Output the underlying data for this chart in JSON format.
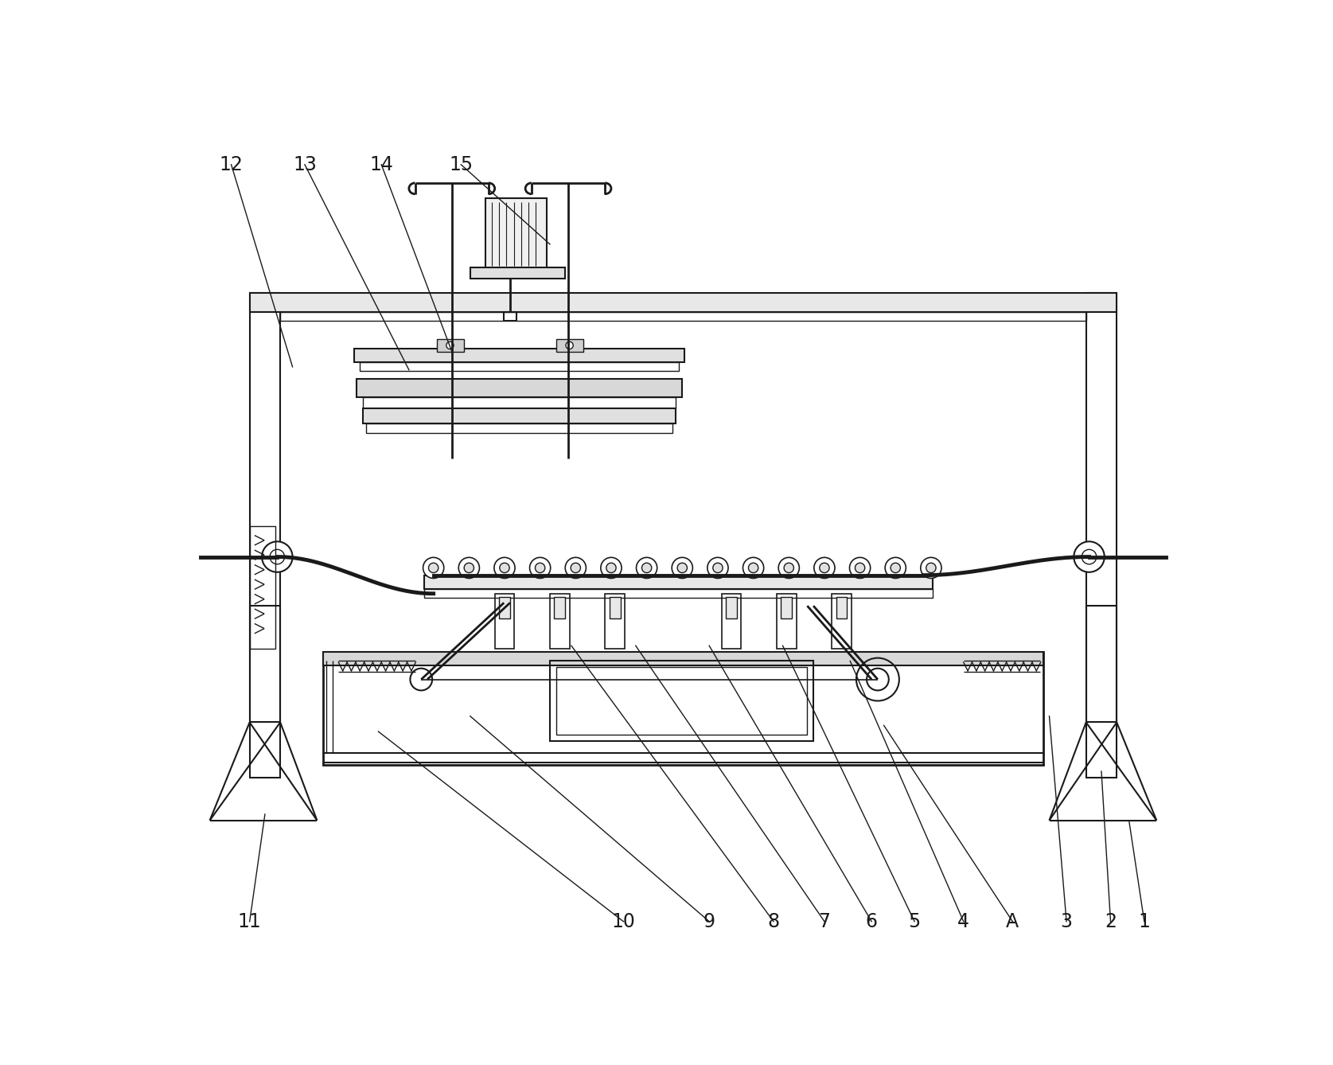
{
  "bg_color": "#ffffff",
  "line_color": "#1a1a1a",
  "annotations": [
    [
      "1",
      1590,
      1295,
      1565,
      1130
    ],
    [
      "2",
      1535,
      1295,
      1520,
      1050
    ],
    [
      "3",
      1463,
      1295,
      1435,
      960
    ],
    [
      "A",
      1375,
      1295,
      1165,
      975
    ],
    [
      "4",
      1295,
      1295,
      1110,
      870
    ],
    [
      "5",
      1215,
      1295,
      1000,
      845
    ],
    [
      "6",
      1145,
      1295,
      880,
      845
    ],
    [
      "7",
      1068,
      1295,
      760,
      845
    ],
    [
      "8",
      985,
      1295,
      655,
      845
    ],
    [
      "9",
      880,
      1295,
      490,
      960
    ],
    [
      "10",
      740,
      1295,
      340,
      985
    ],
    [
      "11",
      130,
      1295,
      155,
      1120
    ],
    [
      "12",
      100,
      60,
      200,
      390
    ],
    [
      "13",
      220,
      60,
      390,
      395
    ],
    [
      "14",
      345,
      60,
      460,
      365
    ],
    [
      "15",
      475,
      60,
      620,
      190
    ]
  ]
}
